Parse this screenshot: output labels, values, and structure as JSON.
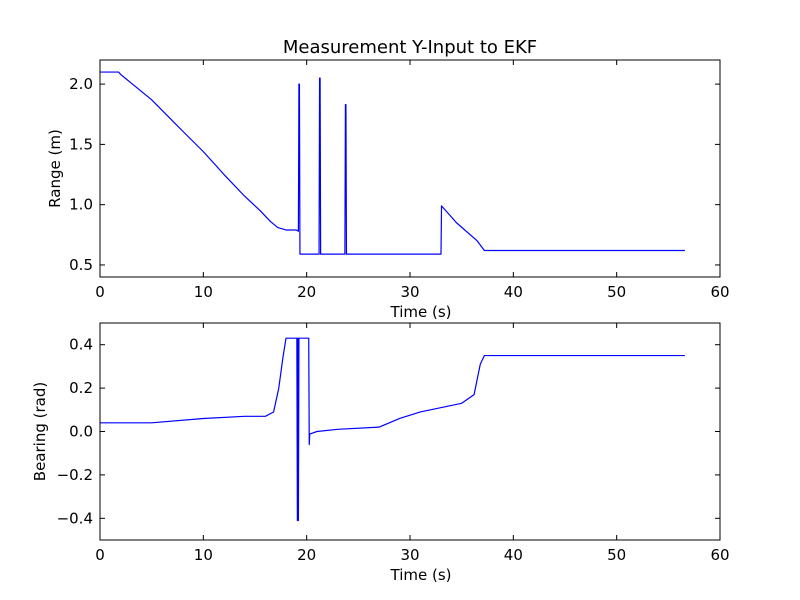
{
  "chart_data": [
    {
      "type": "line",
      "title": "Measurement Y-Input to EKF",
      "xlabel": "Time (s)",
      "ylabel": "Range (m)",
      "xlim": [
        0,
        60
      ],
      "ylim": [
        0.4,
        2.2
      ],
      "xticks": [
        0,
        10,
        20,
        30,
        40,
        50,
        60
      ],
      "yticks": [
        0.5,
        1.0,
        1.5,
        2.0
      ],
      "xtick_labels": [
        "0",
        "10",
        "20",
        "30",
        "40",
        "50",
        "60"
      ],
      "ytick_labels": [
        "0.5",
        "1.0",
        "1.5",
        "2.0"
      ],
      "color": "#0000ff",
      "series": [
        {
          "x": [
            0,
            1.8,
            2.0,
            5,
            8,
            10,
            12,
            14,
            15.5,
            16.5,
            17.2,
            18,
            18.5,
            19.0,
            19.2,
            19.25,
            19.3,
            19.35,
            19.4,
            21.2,
            21.25,
            21.3,
            21.35,
            23.7,
            23.75,
            23.8,
            23.85,
            33.0,
            33.05,
            34.5,
            36.5,
            37.2,
            45,
            56.6
          ],
          "y": [
            2.1,
            2.1,
            2.08,
            1.87,
            1.61,
            1.44,
            1.25,
            1.07,
            0.95,
            0.86,
            0.81,
            0.79,
            0.79,
            0.79,
            0.78,
            2.0,
            2.0,
            0.59,
            0.59,
            0.59,
            2.05,
            2.05,
            0.59,
            0.59,
            1.83,
            1.83,
            0.59,
            0.59,
            0.99,
            0.85,
            0.7,
            0.62,
            0.62,
            0.62
          ]
        }
      ]
    },
    {
      "type": "line",
      "title": "",
      "xlabel": "Time (s)",
      "ylabel": "Bearing (rad)",
      "xlim": [
        0,
        60
      ],
      "ylim": [
        -0.5,
        0.5
      ],
      "xticks": [
        0,
        10,
        20,
        30,
        40,
        50,
        60
      ],
      "yticks": [
        -0.4,
        -0.2,
        0.0,
        0.2,
        0.4
      ],
      "xtick_labels": [
        "0",
        "10",
        "20",
        "30",
        "40",
        "50",
        "60"
      ],
      "ytick_labels": [
        "−0.4",
        "−0.2",
        "0.0",
        "0.2",
        "0.4"
      ],
      "color": "#0000ff",
      "series": [
        {
          "x": [
            0,
            5,
            10,
            14,
            16,
            16.8,
            17.3,
            17.7,
            18.0,
            18.5,
            19.05,
            19.1,
            19.15,
            19.2,
            19.25,
            19.3,
            19.4,
            20.2,
            20.25,
            20.3,
            20.4,
            21,
            23,
            27,
            29,
            31,
            35,
            36.2,
            36.8,
            37.2,
            45,
            56.6
          ],
          "y": [
            0.04,
            0.04,
            0.06,
            0.07,
            0.07,
            0.09,
            0.2,
            0.34,
            0.43,
            0.43,
            0.43,
            -0.41,
            0.43,
            -0.41,
            0.43,
            0.43,
            0.43,
            0.43,
            -0.06,
            -0.01,
            -0.01,
            0.0,
            0.01,
            0.02,
            0.06,
            0.09,
            0.13,
            0.17,
            0.31,
            0.35,
            0.35,
            0.35
          ]
        }
      ]
    }
  ]
}
